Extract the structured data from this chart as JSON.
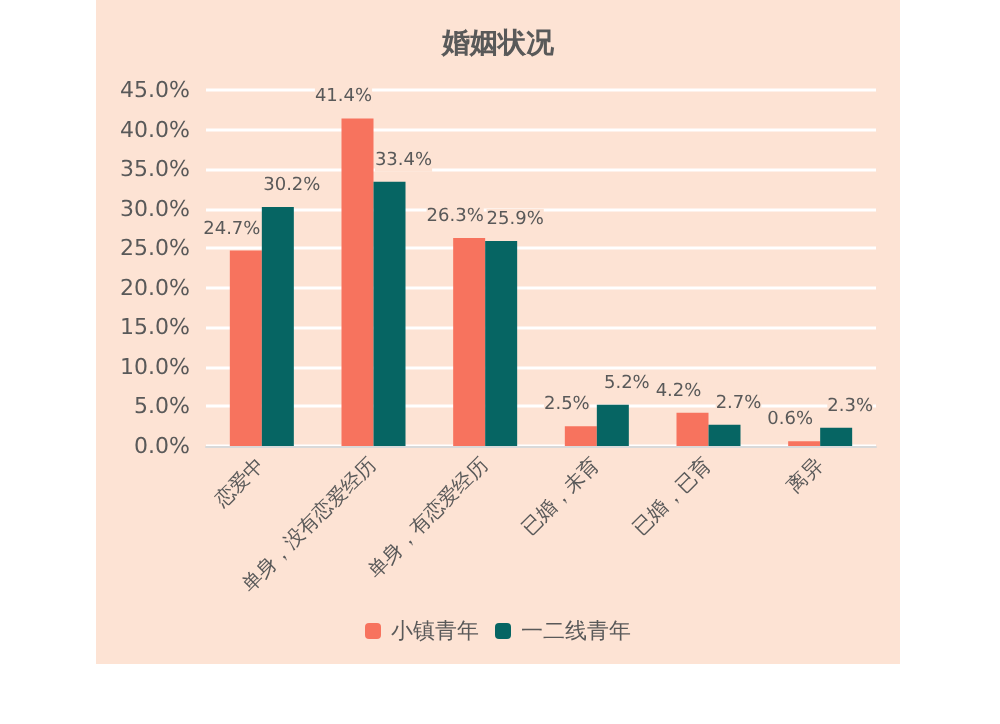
{
  "chart_data": {
    "type": "bar",
    "title": "婚姻状况",
    "categories": [
      "恋爱中",
      "单身，没有恋爱经历",
      "单身，有恋爱经历",
      "已婚，未育",
      "已婚，已育",
      "离异"
    ],
    "series": [
      {
        "name": "小镇青年",
        "color": "#f7735e",
        "values": [
          24.7,
          41.4,
          26.3,
          2.5,
          4.2,
          0.6
        ],
        "value_labels": [
          "24.7%",
          "41.4%",
          "26.3%",
          "2.5%",
          "4.2%",
          "0.6%"
        ]
      },
      {
        "name": "一二线青年",
        "color": "#066563",
        "values": [
          30.2,
          33.4,
          25.9,
          5.2,
          2.7,
          2.3
        ],
        "value_labels": [
          "30.2%",
          "33.4%",
          "25.9%",
          "5.2%",
          "2.7%",
          "2.3%"
        ]
      }
    ],
    "ylim": [
      0,
      45
    ],
    "yticks": [
      {
        "value": 0,
        "label": "0.0%"
      },
      {
        "value": 5,
        "label": "5.0%"
      },
      {
        "value": 10,
        "label": "10.0%"
      },
      {
        "value": 15,
        "label": "15.0%"
      },
      {
        "value": 20,
        "label": "20.0%"
      },
      {
        "value": 25,
        "label": "25.0%"
      },
      {
        "value": 30,
        "label": "30.0%"
      },
      {
        "value": 35,
        "label": "35.0%"
      },
      {
        "value": 40,
        "label": "40.0%"
      },
      {
        "value": 45,
        "label": "45.0%"
      }
    ],
    "grid": "y",
    "legend": "bottom"
  }
}
